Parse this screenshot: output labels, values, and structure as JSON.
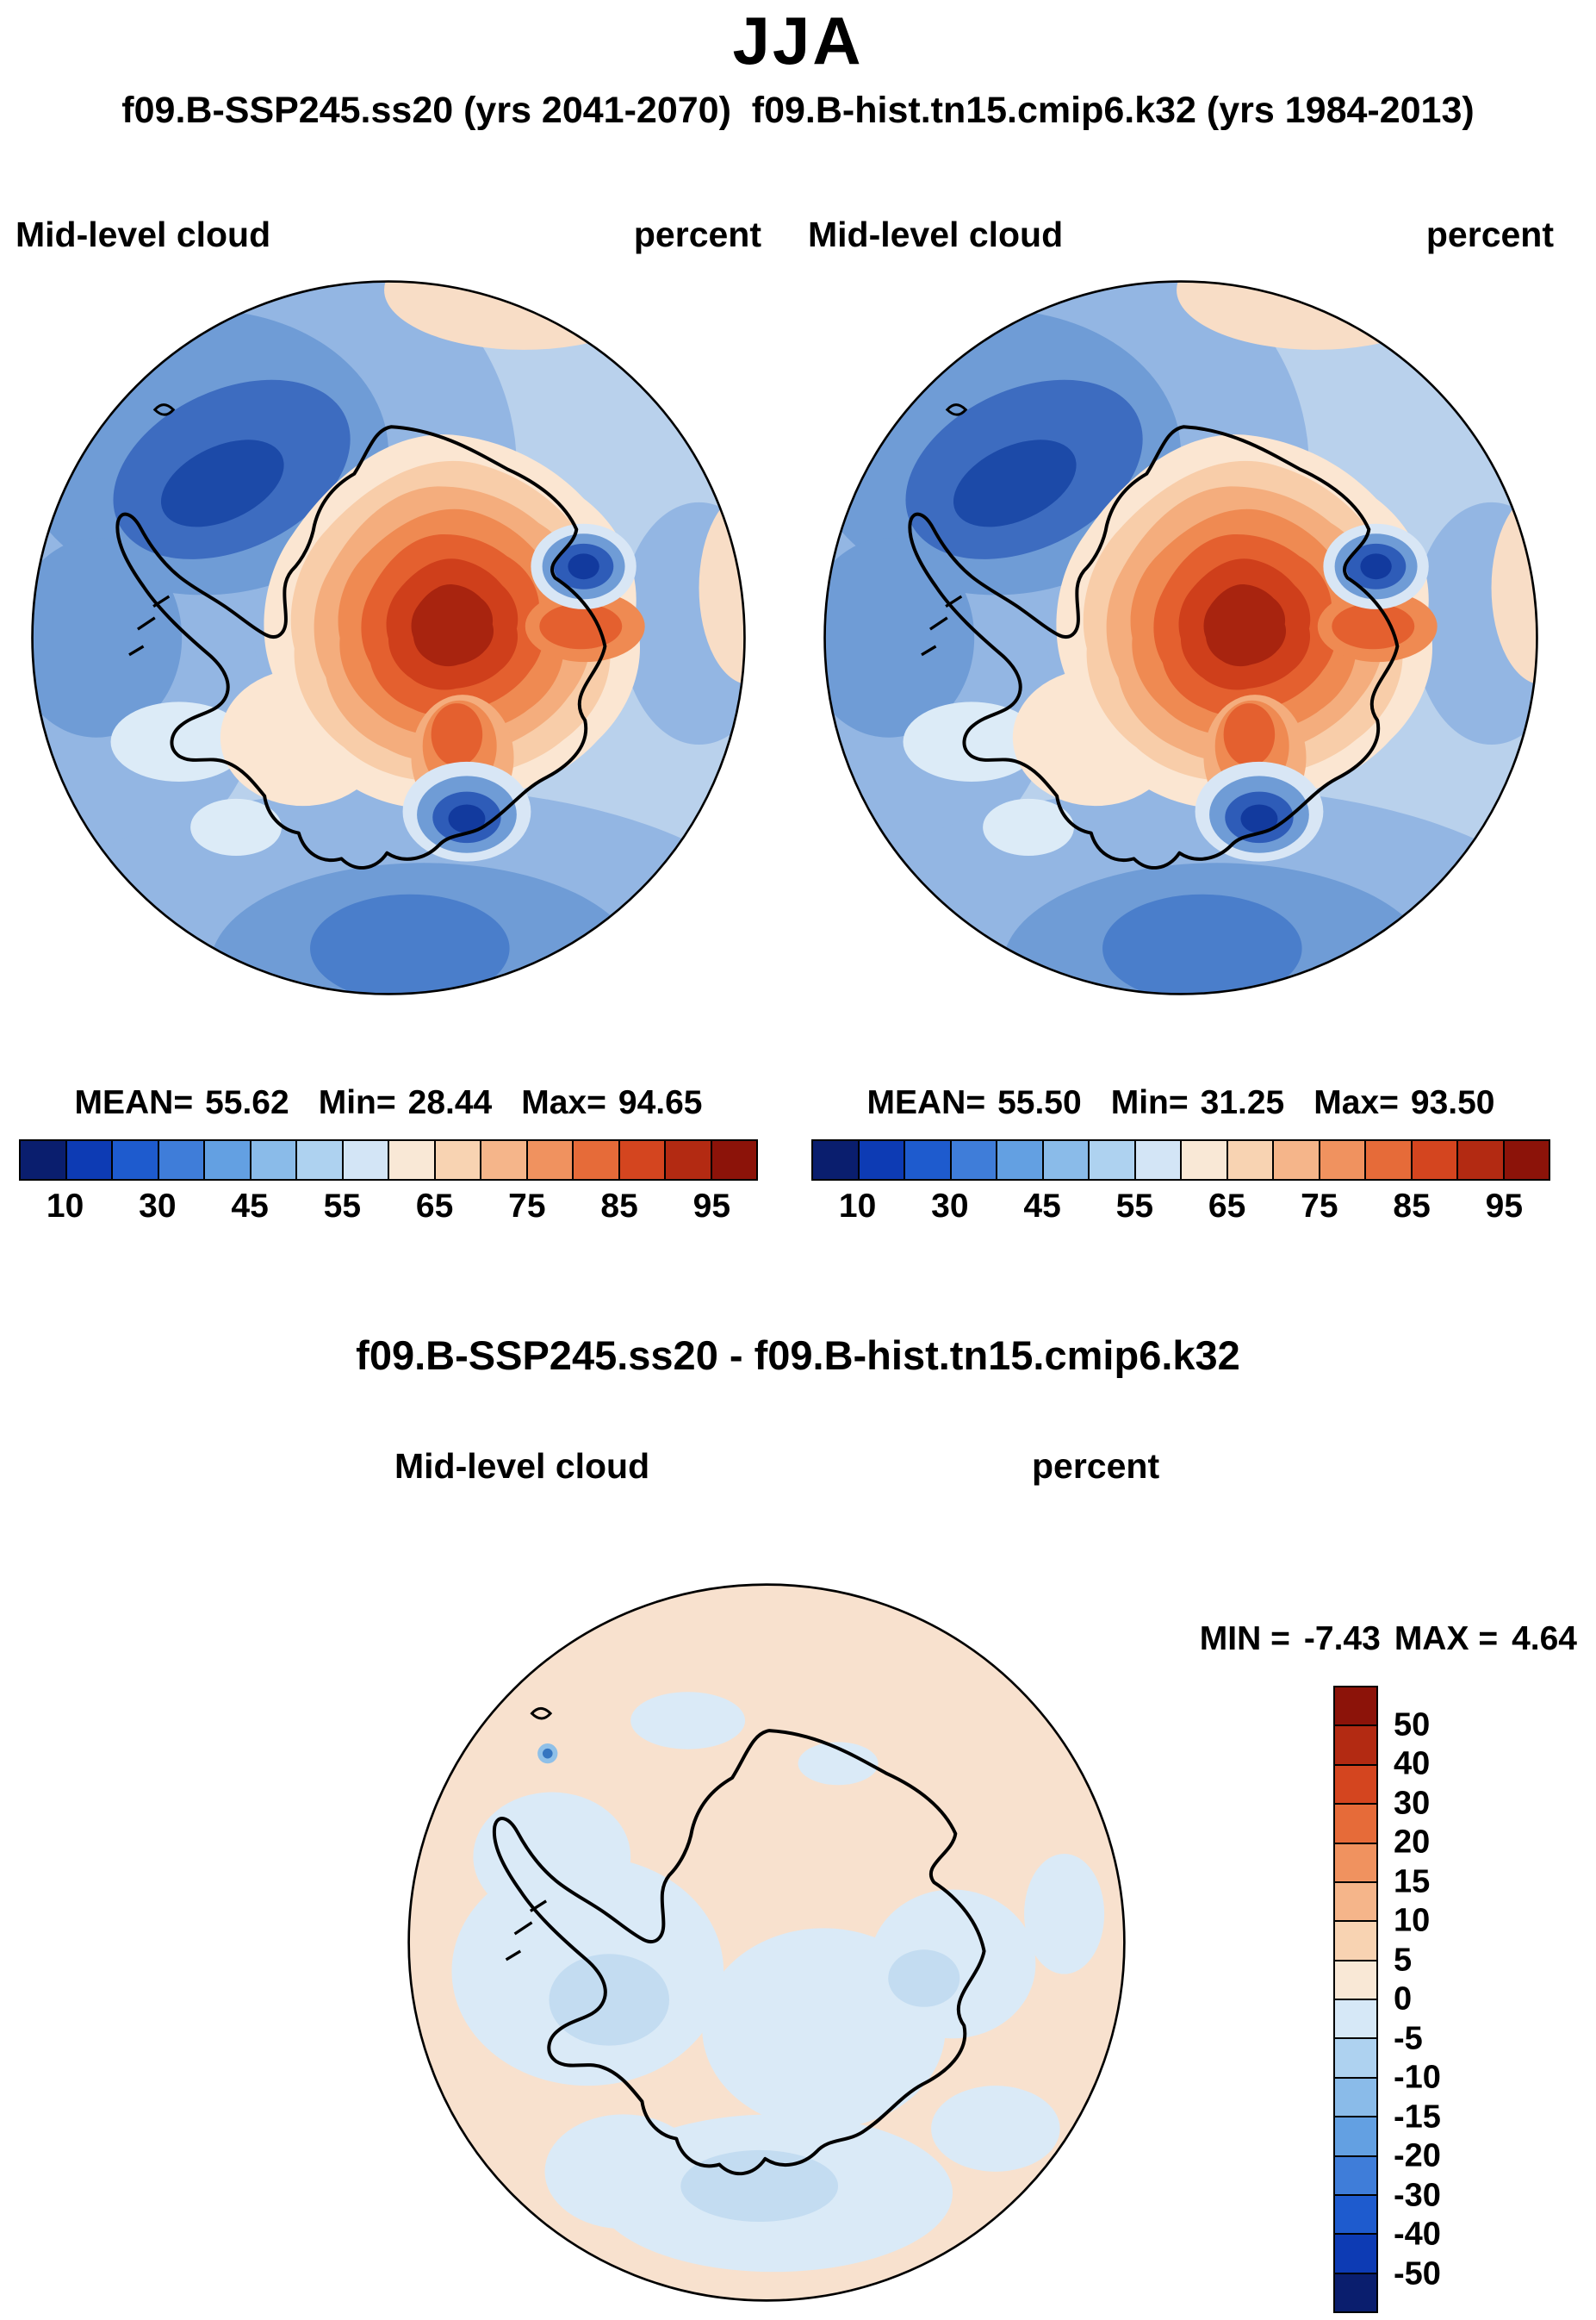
{
  "page": {
    "title": "JJA",
    "subtitle": "f09.B-SSP245.ss20 (yrs 2041-2070)  f09.B-hist.tn15.cmip6.k32 (yrs 1984-2013)"
  },
  "panels": [
    {
      "name": "f09.B-SSP245.ss20",
      "variable": "Mid-level cloud",
      "units": "percent",
      "stats": {
        "mean_label": "MEAN=",
        "mean": "55.62",
        "min_label": "Min=",
        "min": "28.44",
        "max_label": "Max=",
        "max": "94.65"
      }
    },
    {
      "name": "f09.B-hist.tn15.cmip6.k32",
      "variable": "Mid-level cloud",
      "units": "percent",
      "stats": {
        "mean_label": "MEAN=",
        "mean": "55.50",
        "min_label": "Min=",
        "min": "31.25",
        "max_label": "Max=",
        "max": "93.50"
      }
    }
  ],
  "diff": {
    "title": "f09.B-SSP245.ss20 - f09.B-hist.tn15.cmip6.k32",
    "variable": "Mid-level cloud",
    "units": "percent",
    "min_label": "MIN =",
    "min": "-7.43",
    "max_label": "MAX =",
    "max": "4.64"
  },
  "chart_data": [
    {
      "type": "heatmap",
      "projection": "south-polar-stereographic",
      "region": "Antarctica",
      "season": "JJA",
      "title": "f09.B-SSP245.ss20 (yrs 2041-2070)",
      "variable": "Mid-level cloud",
      "units": "percent",
      "mean": 55.62,
      "min": 28.44,
      "max": 94.65,
      "contour_levels": [
        10,
        20,
        30,
        40,
        45,
        50,
        55,
        60,
        65,
        70,
        75,
        80,
        85,
        90,
        95
      ],
      "labeled_ticks": [
        10,
        30,
        45,
        55,
        65,
        75,
        85,
        95
      ],
      "legend_position": "bottom",
      "palette": [
        "#0a1e6e",
        "#0d3bb4",
        "#1e5bce",
        "#3f7dd9",
        "#63a0e2",
        "#8abbe9",
        "#aed2f0",
        "#d3e5f6",
        "#f9e8d6",
        "#f8d3b2",
        "#f5b58a",
        "#f0925f",
        "#e66b39",
        "#d4451f",
        "#b32a12",
        "#8c1309"
      ]
    },
    {
      "type": "heatmap",
      "projection": "south-polar-stereographic",
      "region": "Antarctica",
      "season": "JJA",
      "title": "f09.B-hist.tn15.cmip6.k32 (yrs 1984-2013)",
      "variable": "Mid-level cloud",
      "units": "percent",
      "mean": 55.5,
      "min": 31.25,
      "max": 93.5,
      "contour_levels": [
        10,
        20,
        30,
        40,
        45,
        50,
        55,
        60,
        65,
        70,
        75,
        80,
        85,
        90,
        95
      ],
      "labeled_ticks": [
        10,
        30,
        45,
        55,
        65,
        75,
        85,
        95
      ],
      "legend_position": "bottom",
      "palette": [
        "#0a1e6e",
        "#0d3bb4",
        "#1e5bce",
        "#3f7dd9",
        "#63a0e2",
        "#8abbe9",
        "#aed2f0",
        "#d3e5f6",
        "#f9e8d6",
        "#f8d3b2",
        "#f5b58a",
        "#f0925f",
        "#e66b39",
        "#d4451f",
        "#b32a12",
        "#8c1309"
      ]
    },
    {
      "type": "heatmap",
      "projection": "south-polar-stereographic",
      "region": "Antarctica",
      "season": "JJA",
      "title": "f09.B-SSP245.ss20 - f09.B-hist.tn15.cmip6.k32",
      "variable": "Mid-level cloud",
      "units": "percent",
      "min": -7.43,
      "max": 4.64,
      "contour_levels": [
        -50,
        -40,
        -30,
        -20,
        -15,
        -10,
        -5,
        0,
        5,
        10,
        15,
        20,
        30,
        40,
        50
      ],
      "legend_position": "right",
      "palette": [
        "#0a1e6e",
        "#0d3bb4",
        "#1e5bce",
        "#3f7dd9",
        "#63a0e2",
        "#8abbe9",
        "#aed2f0",
        "#d6e8f7",
        "#f9e8d6",
        "#f8d3b2",
        "#f5b58a",
        "#f0925f",
        "#e66b39",
        "#d4451f",
        "#b32a12",
        "#8c1309"
      ]
    }
  ]
}
